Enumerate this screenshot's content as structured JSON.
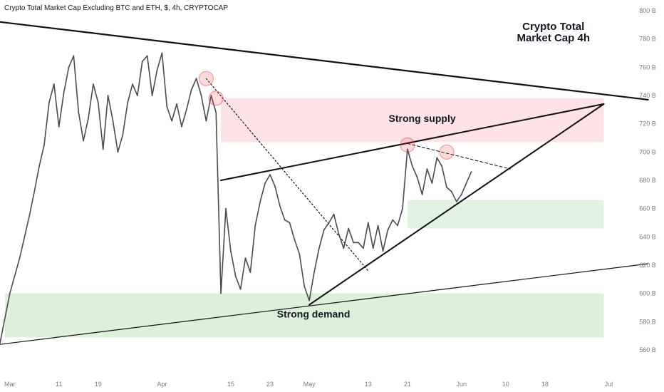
{
  "header": {
    "symbol_line": "Crypto Total Market Cap Excluding BTC and ETH, $, 4h, CRYPTOCAP"
  },
  "corner_title": {
    "line1": "Crypto Total",
    "line2": "Market Cap 4h"
  },
  "chart_data": {
    "type": "line",
    "title": "Crypto Total Market Cap 4h",
    "subtitle": "Crypto Total Market Cap Excluding BTC and ETH, $, 4h, CRYPTOCAP",
    "xlabel": "",
    "ylabel": "",
    "ylim": [
      553,
      805
    ],
    "y_unit": "B",
    "y_ticks": [
      {
        "value": 800,
        "label": "800 B"
      },
      {
        "value": 780,
        "label": "780 B"
      },
      {
        "value": 760,
        "label": "760 B"
      },
      {
        "value": 740,
        "label": "740 B"
      },
      {
        "value": 720,
        "label": "720 B"
      },
      {
        "value": 700,
        "label": "700 B"
      },
      {
        "value": 680,
        "label": "680 B"
      },
      {
        "value": 660,
        "label": "660 B"
      },
      {
        "value": 640,
        "label": "640 B"
      },
      {
        "value": 620,
        "label": "620 B"
      },
      {
        "value": 600,
        "label": "600 B"
      },
      {
        "value": 580,
        "label": "580 B"
      },
      {
        "value": 560,
        "label": "560 B"
      }
    ],
    "x_range": [
      "2024-02-28",
      "2024-07-05"
    ],
    "x_ticks": [
      {
        "date": "2024-03-01",
        "label": "Mar"
      },
      {
        "date": "2024-03-11",
        "label": "11"
      },
      {
        "date": "2024-03-19",
        "label": "19"
      },
      {
        "date": "2024-04-01",
        "label": "Apr"
      },
      {
        "date": "2024-04-15",
        "label": "15"
      },
      {
        "date": "2024-04-23",
        "label": "23"
      },
      {
        "date": "2024-05-01",
        "label": "May"
      },
      {
        "date": "2024-05-13",
        "label": "13"
      },
      {
        "date": "2024-05-21",
        "label": "21"
      },
      {
        "date": "2024-06-01",
        "label": "Jun"
      },
      {
        "date": "2024-06-10",
        "label": "10"
      },
      {
        "date": "2024-06-18",
        "label": "18"
      },
      {
        "date": "2024-07-01",
        "label": "Jul"
      }
    ],
    "series": [
      {
        "color": "#4a4a4f",
        "points": [
          [
            "2024-02-28",
            565
          ],
          [
            "2024-03-01",
            600
          ],
          [
            "2024-03-03",
            625
          ],
          [
            "2024-03-05",
            655
          ],
          [
            "2024-03-06",
            672
          ],
          [
            "2024-03-07",
            690
          ],
          [
            "2024-03-08",
            705
          ],
          [
            "2024-03-09",
            735
          ],
          [
            "2024-03-10",
            748
          ],
          [
            "2024-03-11",
            718
          ],
          [
            "2024-03-12",
            742
          ],
          [
            "2024-03-13",
            760
          ],
          [
            "2024-03-14",
            768
          ],
          [
            "2024-03-15",
            728
          ],
          [
            "2024-03-16",
            708
          ],
          [
            "2024-03-17",
            724
          ],
          [
            "2024-03-18",
            748
          ],
          [
            "2024-03-19",
            735
          ],
          [
            "2024-03-20",
            702
          ],
          [
            "2024-03-21",
            740
          ],
          [
            "2024-03-22",
            722
          ],
          [
            "2024-03-23",
            700
          ],
          [
            "2024-03-24",
            712
          ],
          [
            "2024-03-25",
            735
          ],
          [
            "2024-03-26",
            748
          ],
          [
            "2024-03-27",
            740
          ],
          [
            "2024-03-28",
            764
          ],
          [
            "2024-03-29",
            768
          ],
          [
            "2024-03-30",
            740
          ],
          [
            "2024-03-31",
            758
          ],
          [
            "2024-04-01",
            770
          ],
          [
            "2024-04-02",
            732
          ],
          [
            "2024-04-03",
            722
          ],
          [
            "2024-04-04",
            734
          ],
          [
            "2024-04-05",
            718
          ],
          [
            "2024-04-06",
            730
          ],
          [
            "2024-04-07",
            744
          ],
          [
            "2024-04-08",
            752
          ],
          [
            "2024-04-09",
            740
          ],
          [
            "2024-04-10",
            722
          ],
          [
            "2024-04-11",
            740
          ],
          [
            "2024-04-12",
            728
          ],
          [
            "2024-04-13",
            600
          ],
          [
            "2024-04-14",
            660
          ],
          [
            "2024-04-15",
            630
          ],
          [
            "2024-04-16",
            612
          ],
          [
            "2024-04-17",
            603
          ],
          [
            "2024-04-18",
            625
          ],
          [
            "2024-04-19",
            615
          ],
          [
            "2024-04-20",
            648
          ],
          [
            "2024-04-21",
            665
          ],
          [
            "2024-04-22",
            678
          ],
          [
            "2024-04-23",
            684
          ],
          [
            "2024-04-24",
            676
          ],
          [
            "2024-04-25",
            662
          ],
          [
            "2024-04-26",
            652
          ],
          [
            "2024-04-27",
            650
          ],
          [
            "2024-04-28",
            638
          ],
          [
            "2024-04-29",
            628
          ],
          [
            "2024-04-30",
            605
          ],
          [
            "2024-05-01",
            595
          ],
          [
            "2024-05-02",
            615
          ],
          [
            "2024-05-03",
            632
          ],
          [
            "2024-05-04",
            645
          ],
          [
            "2024-05-05",
            650
          ],
          [
            "2024-05-06",
            656
          ],
          [
            "2024-05-07",
            642
          ],
          [
            "2024-05-08",
            632
          ],
          [
            "2024-05-09",
            646
          ],
          [
            "2024-05-10",
            636
          ],
          [
            "2024-05-11",
            636
          ],
          [
            "2024-05-12",
            632
          ],
          [
            "2024-05-13",
            650
          ],
          [
            "2024-05-14",
            632
          ],
          [
            "2024-05-15",
            648
          ],
          [
            "2024-05-16",
            630
          ],
          [
            "2024-05-17",
            645
          ],
          [
            "2024-05-18",
            652
          ],
          [
            "2024-05-19",
            648
          ],
          [
            "2024-05-20",
            660
          ],
          [
            "2024-05-21",
            702
          ],
          [
            "2024-05-22",
            690
          ],
          [
            "2024-05-23",
            682
          ],
          [
            "2024-05-24",
            670
          ],
          [
            "2024-05-25",
            688
          ],
          [
            "2024-05-26",
            678
          ],
          [
            "2024-05-27",
            696
          ],
          [
            "2024-05-28",
            690
          ],
          [
            "2024-05-29",
            675
          ],
          [
            "2024-05-30",
            672
          ],
          [
            "2024-05-31",
            665
          ],
          [
            "2024-06-01",
            670
          ],
          [
            "2024-06-02",
            678
          ],
          [
            "2024-06-03",
            686
          ]
        ]
      }
    ],
    "zones": [
      {
        "name": "supply",
        "label": "Strong supply",
        "from": "2024-04-13",
        "to": "2024-06-30",
        "y_low": 707,
        "y_high": 738,
        "color": "#fde3e5"
      },
      {
        "name": "support-small",
        "label": "",
        "from": "2024-05-21",
        "to": "2024-06-30",
        "y_low": 646,
        "y_high": 666,
        "color": "#e3f3e3"
      },
      {
        "name": "demand",
        "label": "Strong demand",
        "from": "2024-02-29",
        "to": "2024-06-30",
        "y_low": 569,
        "y_high": 600,
        "color": "#dcf0da"
      }
    ],
    "trendlines": [
      {
        "name": "descending-resistance",
        "from": [
          "2024-02-28",
          792
        ],
        "to": [
          "2024-07-09",
          737
        ],
        "style": "solid",
        "width": 2.2
      },
      {
        "name": "wedge-upper",
        "from": [
          "2024-04-13",
          680
        ],
        "to": [
          "2024-06-30",
          734
        ],
        "style": "solid",
        "width": 2
      },
      {
        "name": "wedge-lower",
        "from": [
          "2024-05-01",
          592
        ],
        "to": [
          "2024-06-30",
          734
        ],
        "style": "solid",
        "width": 2
      },
      {
        "name": "long-support",
        "from": [
          "2024-02-28",
          564
        ],
        "to": [
          "2024-07-09",
          621
        ],
        "style": "solid",
        "width": 1.2
      },
      {
        "name": "dotted-downtrend",
        "from": [
          "2024-04-10",
          752
        ],
        "to": [
          "2024-05-13",
          616
        ],
        "style": "dotted",
        "width": 1.2
      },
      {
        "name": "dotted-top-line",
        "from": [
          "2024-05-21",
          706
        ],
        "to": [
          "2024-06-11",
          688
        ],
        "style": "dashed",
        "width": 1
      }
    ],
    "markers": [
      {
        "date": "2024-04-10",
        "value": 752
      },
      {
        "date": "2024-04-12",
        "value": 738
      },
      {
        "date": "2024-05-21",
        "value": 705
      },
      {
        "date": "2024-05-29",
        "value": 700
      }
    ],
    "grid": false,
    "legend": "none"
  }
}
